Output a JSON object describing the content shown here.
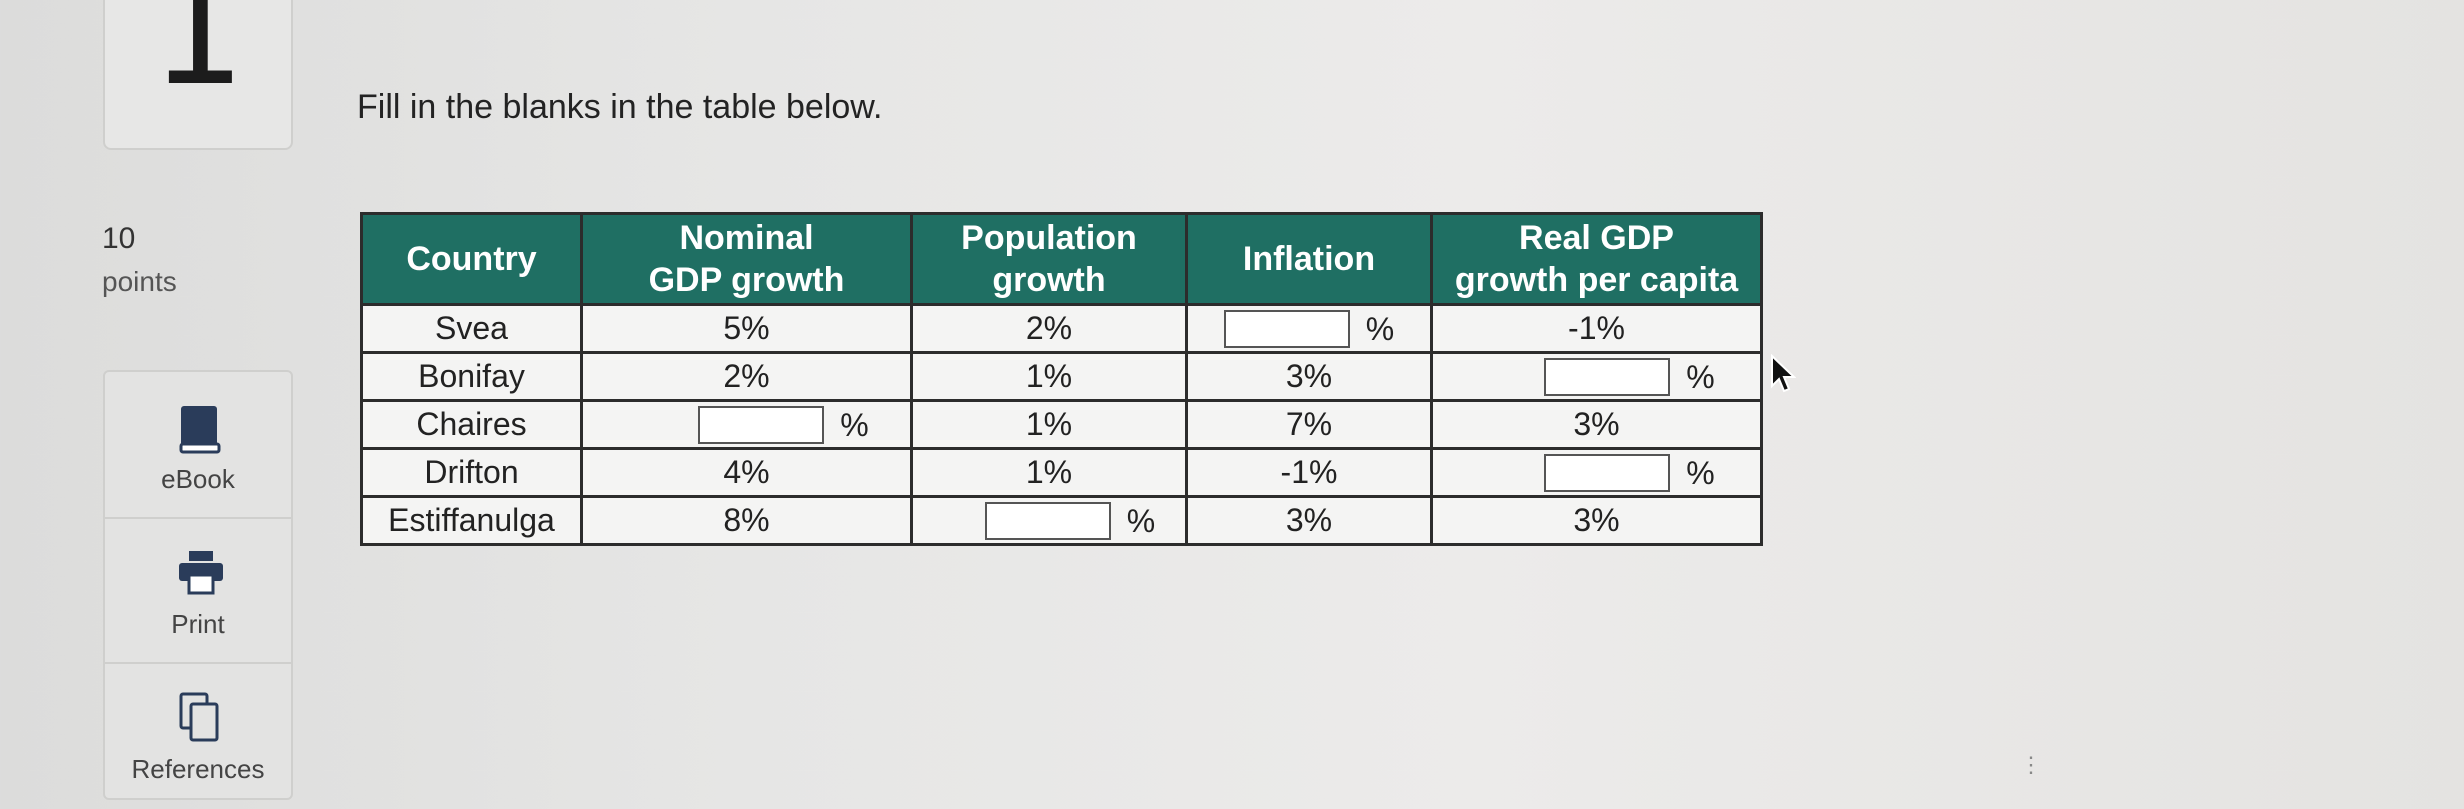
{
  "question": {
    "number": "1",
    "points_value": "10",
    "points_label": "points",
    "prompt": "Fill in the blanks in the table below."
  },
  "tools": [
    {
      "label": "eBook",
      "icon": "book-icon"
    },
    {
      "label": "Print",
      "icon": "printer-icon"
    },
    {
      "label": "References",
      "icon": "copy-pages-icon"
    }
  ],
  "table": {
    "headers": [
      "Country",
      "Nominal GDP growth",
      "Population growth",
      "Inflation",
      "Real GDP growth per capita"
    ],
    "header_lines": [
      [
        "Country"
      ],
      [
        "Nominal",
        "GDP growth"
      ],
      [
        "Population",
        "growth"
      ],
      [
        "Inflation"
      ],
      [
        "Real GDP",
        "growth per capita"
      ]
    ],
    "rows": [
      {
        "country": "Svea",
        "nominal_gdp_growth": "5%",
        "population_growth": "2%",
        "inflation": "",
        "real_gdp_growth_per_capita": "-1%"
      },
      {
        "country": "Bonifay",
        "nominal_gdp_growth": "2%",
        "population_growth": "1%",
        "inflation": "3%",
        "real_gdp_growth_per_capita": ""
      },
      {
        "country": "Chaires",
        "nominal_gdp_growth": "",
        "population_growth": "1%",
        "inflation": "7%",
        "real_gdp_growth_per_capita": "3%"
      },
      {
        "country": "Drifton",
        "nominal_gdp_growth": "4%",
        "population_growth": "1%",
        "inflation": "-1%",
        "real_gdp_growth_per_capita": ""
      },
      {
        "country": "Estiffanulga",
        "nominal_gdp_growth": "8%",
        "population_growth": "",
        "inflation": "3%",
        "real_gdp_growth_per_capita": "3%"
      }
    ],
    "percent_suffix": "%"
  },
  "colors": {
    "header_bg": "#1f6f63",
    "header_text": "#ffffff",
    "cell_bg": "#f4f4f3",
    "border": "#2c2c2c"
  }
}
